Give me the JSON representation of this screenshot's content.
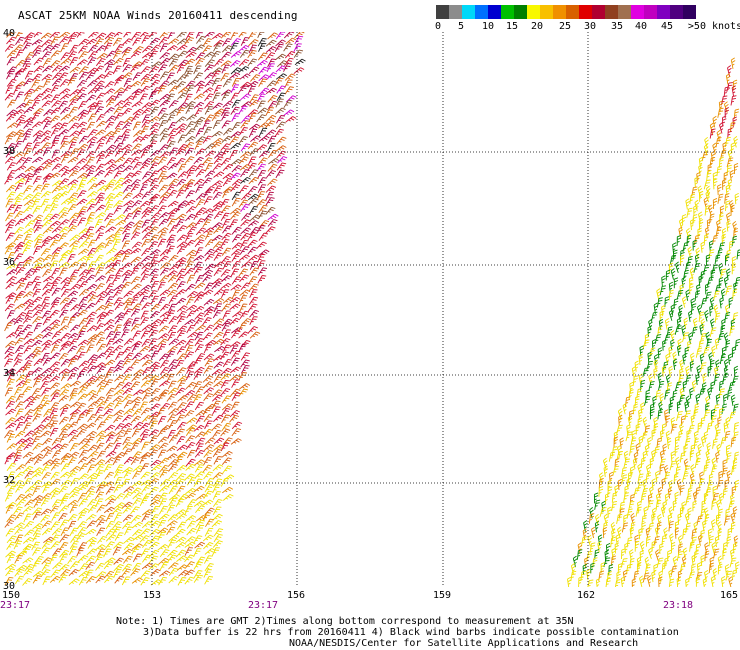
{
  "title": "ASCAT 25KM NOAA Winds 20160411 descending",
  "colorbar": {
    "colors": [
      "#404040",
      "#8c8c8c",
      "#00d8f8",
      "#0070ff",
      "#0000d0",
      "#00c000",
      "#008000",
      "#f8f800",
      "#f8c000",
      "#f09000",
      "#d86000",
      "#e00000",
      "#b00030",
      "#904020",
      "#a07050",
      "#e000e0",
      "#c000c0",
      "#8000c0",
      "#500080",
      "#300060"
    ],
    "labels": [
      "0",
      "5",
      "10",
      "15",
      "20",
      "25",
      "30",
      "35",
      "40",
      "45",
      ">50 knots"
    ]
  },
  "axes": {
    "lat_labels": [
      "40",
      "38",
      "36",
      "34",
      "32",
      "30"
    ],
    "lon_labels": [
      "150",
      "153",
      "156",
      "159",
      "162",
      "165"
    ]
  },
  "swath_times": [
    "23:17",
    "23:17",
    "23:18"
  ],
  "notes": [
    "Note: 1) Times are GMT 2)Times along bottom correspond to measurement at 35N",
    "3)Data buffer is 22 hrs from 20160411 4) Black wind barbs indicate possible contamination",
    "NOAA/NESDIS/Center for Satellite Applications and Research"
  ],
  "wind_palette": {
    "green": "#008800",
    "yellow": "#f0e000",
    "orange": "#e89000",
    "dark_orange": "#d86010",
    "red": "#d01030",
    "crimson": "#b00040",
    "brown": "#8a5030",
    "black": "#202020",
    "magenta": "#d000d0"
  }
}
